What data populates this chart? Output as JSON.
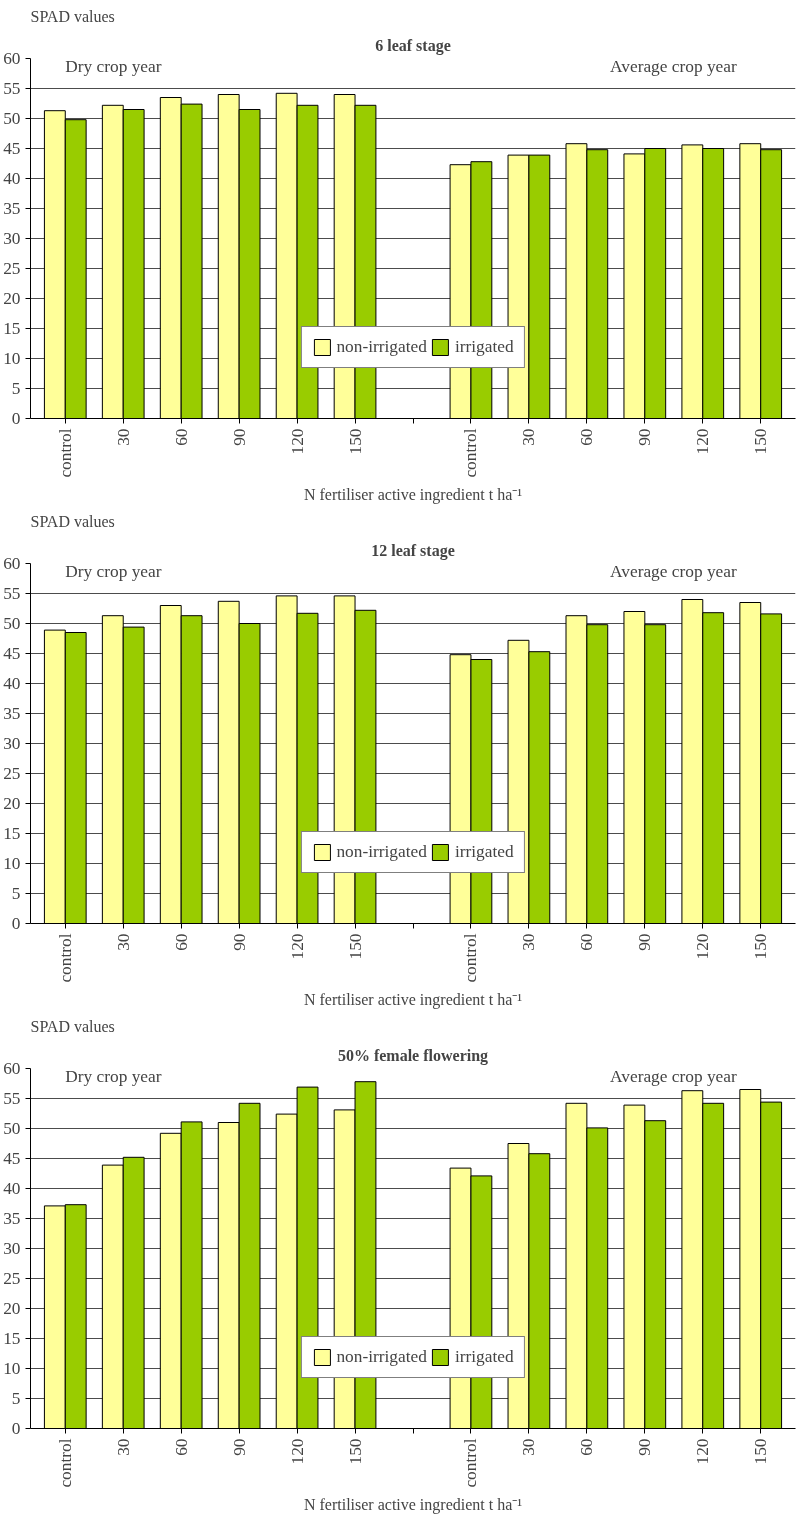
{
  "chart_data": [
    {
      "type": "bar",
      "title": "6 leaf stage",
      "ylabel": "SPAD values",
      "xlabel": "N fertiliser active ingredient t ha⁻¹",
      "categories": [
        "control",
        "30",
        "60",
        "90",
        "120",
        "150",
        null,
        "control",
        "30",
        "60",
        "90",
        "120",
        "150"
      ],
      "series": [
        {
          "name": "non-irrigated",
          "color": "#ffff99",
          "values": [
            51.3,
            52.2,
            53.5,
            54.0,
            54.2,
            54.0,
            null,
            42.3,
            43.9,
            45.8,
            44.1,
            45.6,
            45.8
          ]
        },
        {
          "name": "irrigated",
          "color": "#99cc00",
          "values": [
            49.8,
            51.5,
            52.4,
            51.5,
            52.2,
            52.2,
            null,
            42.8,
            43.9,
            44.8,
            45.0,
            45.0,
            44.8
          ]
        }
      ],
      "annotations": [
        "Dry crop year",
        "Average crop year"
      ],
      "ylim": [
        0,
        60
      ],
      "yticks": [
        0,
        5,
        10,
        15,
        20,
        25,
        30,
        35,
        40,
        45,
        50,
        55,
        60
      ],
      "grid": "y",
      "legend": "bottom"
    },
    {
      "type": "bar",
      "title": "12 leaf stage",
      "ylabel": "SPAD values",
      "xlabel": "N fertiliser active ingredient t ha⁻¹",
      "categories": [
        "control",
        "30",
        "60",
        "90",
        "120",
        "150",
        null,
        "control",
        "30",
        "60",
        "90",
        "120",
        "150"
      ],
      "series": [
        {
          "name": "non-irrigated",
          "color": "#ffff99",
          "values": [
            48.9,
            51.3,
            53.0,
            53.7,
            54.6,
            54.6,
            null,
            44.8,
            47.2,
            51.3,
            52.0,
            54.0,
            53.5
          ]
        },
        {
          "name": "irrigated",
          "color": "#99cc00",
          "values": [
            48.5,
            49.4,
            51.3,
            50.0,
            51.7,
            52.2,
            null,
            44.0,
            45.3,
            49.8,
            49.8,
            51.8,
            51.6
          ]
        }
      ],
      "annotations": [
        "Dry crop year",
        "Average crop year"
      ],
      "ylim": [
        0,
        60
      ],
      "yticks": [
        0,
        5,
        10,
        15,
        20,
        25,
        30,
        35,
        40,
        45,
        50,
        55,
        60
      ],
      "grid": "y",
      "legend": "bottom"
    },
    {
      "type": "bar",
      "title": "50% female flowering",
      "ylabel": "SPAD values",
      "xlabel": "N fertiliser active ingredient t ha⁻¹",
      "categories": [
        "control",
        "30",
        "60",
        "90",
        "120",
        "150",
        null,
        "control",
        "30",
        "60",
        "90",
        "120",
        "150"
      ],
      "series": [
        {
          "name": "non-irrigated",
          "color": "#ffff99",
          "values": [
            37.1,
            43.9,
            49.2,
            51.0,
            52.4,
            53.1,
            null,
            43.4,
            47.5,
            54.2,
            53.9,
            56.3,
            56.5
          ]
        },
        {
          "name": "irrigated",
          "color": "#99cc00",
          "values": [
            37.3,
            45.2,
            51.1,
            54.2,
            56.9,
            57.8,
            null,
            42.1,
            45.8,
            50.1,
            51.3,
            54.2,
            54.4
          ]
        }
      ],
      "annotations": [
        "Dry crop year",
        "Average crop year"
      ],
      "ylim": [
        0,
        60
      ],
      "yticks": [
        0,
        5,
        10,
        15,
        20,
        25,
        30,
        35,
        40,
        45,
        50,
        55,
        60
      ],
      "grid": "y",
      "legend": "bottom"
    }
  ]
}
